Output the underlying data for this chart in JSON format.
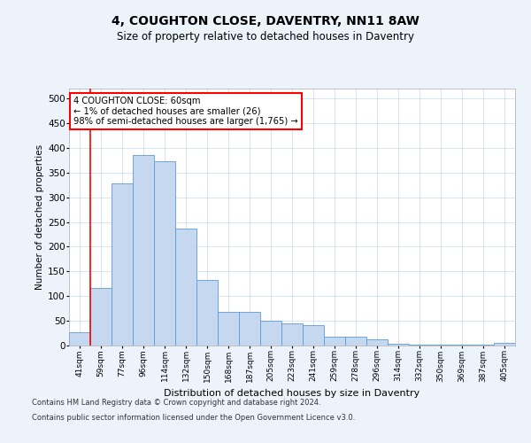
{
  "title": "4, COUGHTON CLOSE, DAVENTRY, NN11 8AW",
  "subtitle": "Size of property relative to detached houses in Daventry",
  "xlabel": "Distribution of detached houses by size in Daventry",
  "ylabel": "Number of detached properties",
  "categories": [
    "41sqm",
    "59sqm",
    "77sqm",
    "96sqm",
    "114sqm",
    "132sqm",
    "150sqm",
    "168sqm",
    "187sqm",
    "205sqm",
    "223sqm",
    "241sqm",
    "259sqm",
    "278sqm",
    "296sqm",
    "314sqm",
    "332sqm",
    "350sqm",
    "369sqm",
    "387sqm",
    "405sqm"
  ],
  "values": [
    27,
    117,
    328,
    385,
    373,
    237,
    133,
    68,
    68,
    50,
    44,
    42,
    18,
    18,
    12,
    3,
    2,
    1,
    1,
    1,
    6
  ],
  "bar_color": "#c5d8f0",
  "bar_edge_color": "#5b9bd5",
  "annotation_line1": "4 COUGHTON CLOSE: 60sqm",
  "annotation_line2": "← 1% of detached houses are smaller (26)",
  "annotation_line3": "98% of semi-detached houses are larger (1,765) →",
  "property_line_x": 0.5,
  "ylim": [
    0,
    520
  ],
  "yticks": [
    0,
    50,
    100,
    150,
    200,
    250,
    300,
    350,
    400,
    450,
    500
  ],
  "footer_line1": "Contains HM Land Registry data © Crown copyright and database right 2024.",
  "footer_line2": "Contains public sector information licensed under the Open Government Licence v3.0.",
  "bg_color": "#edf3fb",
  "plot_bg_color": "#ffffff",
  "grid_color": "#c8d8ee"
}
